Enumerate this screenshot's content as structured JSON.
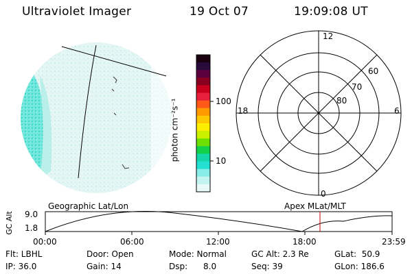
{
  "header": {
    "title": "Ultraviolet Imager",
    "date": "19 Oct 07",
    "time": "19:09:08 UT"
  },
  "colorbar": {
    "unit_label": "photon cm⁻²s⁻¹",
    "ticks": [
      "100",
      "10"
    ],
    "colors": [
      "#1a0010",
      "#2a0a3a",
      "#5a0040",
      "#8a0020",
      "#c8001e",
      "#e8203c",
      "#ff5a1a",
      "#ff9a00",
      "#ffc800",
      "#ffee00",
      "#c8f000",
      "#6ee000",
      "#12d24a",
      "#14d6a8",
      "#24e0d0",
      "#88ece8",
      "#c4f4f2",
      "#e8faf8"
    ]
  },
  "polar_plot": {
    "hour_labels": {
      "top": "12",
      "left": "18",
      "right": "6",
      "bottom": "0"
    },
    "lat_labels": [
      "60",
      "70",
      "80"
    ]
  },
  "timeline": {
    "left_title": "Geographic Lat/Lon",
    "right_title": "Apex MLat/MLT",
    "y_axis_label": "GC Alt",
    "y_ticks": [
      "9.0",
      "1.8"
    ],
    "x_ticks": [
      "00:00",
      "06:00",
      "12:00",
      "18:00",
      "23:59"
    ],
    "marker_color": "#cc0000"
  },
  "info": {
    "flt": "Flt: LBHL",
    "ip": "IP: 36.0",
    "door": "Door: Open",
    "gain": "Gain: 14",
    "mode": "Mode: Normal",
    "dsp": "Dsp:      8.0",
    "gcalt": "GC Alt: 2.3 Re",
    "seq": "Seq: 39",
    "glat": "GLat:  50.9",
    "glon": "GLon: 186.6"
  }
}
